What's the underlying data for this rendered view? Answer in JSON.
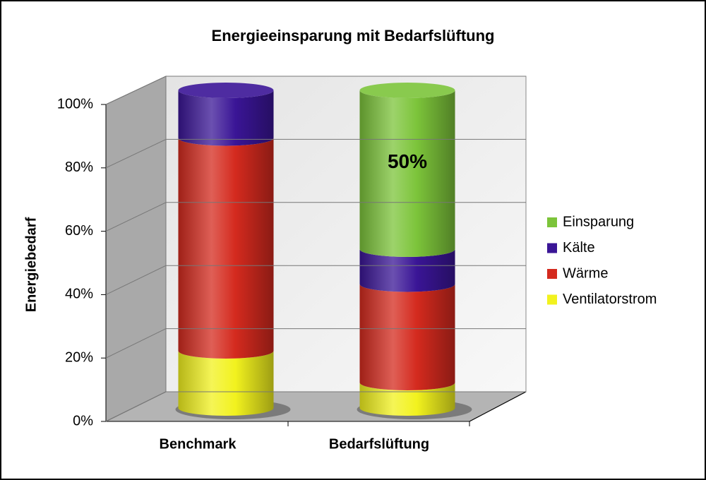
{
  "chart_data": {
    "type": "bar3d-stacked",
    "title": "Energieeinsparung mit Bedarfslüftung",
    "y_label": "Energiebedarf",
    "categories": [
      "Benchmark",
      "Bedarfslüftung"
    ],
    "series": [
      {
        "name": "Ventilatorstrom",
        "color": "#f2f21e",
        "values": [
          18,
          8
        ]
      },
      {
        "name": "Wärme",
        "color": "#d42a1e",
        "values": [
          67,
          31
        ]
      },
      {
        "name": "Kälte",
        "color": "#3a1596",
        "values": [
          15,
          11
        ]
      },
      {
        "name": "Einsparung",
        "color": "#7cc43a",
        "values": [
          0,
          50
        ],
        "value_labels": [
          null,
          "50%"
        ]
      }
    ],
    "ylim": [
      0,
      100
    ],
    "yticks": [
      {
        "value": 0,
        "label": "0%"
      },
      {
        "value": 20,
        "label": "20%"
      },
      {
        "value": 40,
        "label": "40%"
      },
      {
        "value": 60,
        "label": "60%"
      },
      {
        "value": 80,
        "label": "80%"
      },
      {
        "value": 100,
        "label": "100%"
      }
    ],
    "grid": true
  }
}
